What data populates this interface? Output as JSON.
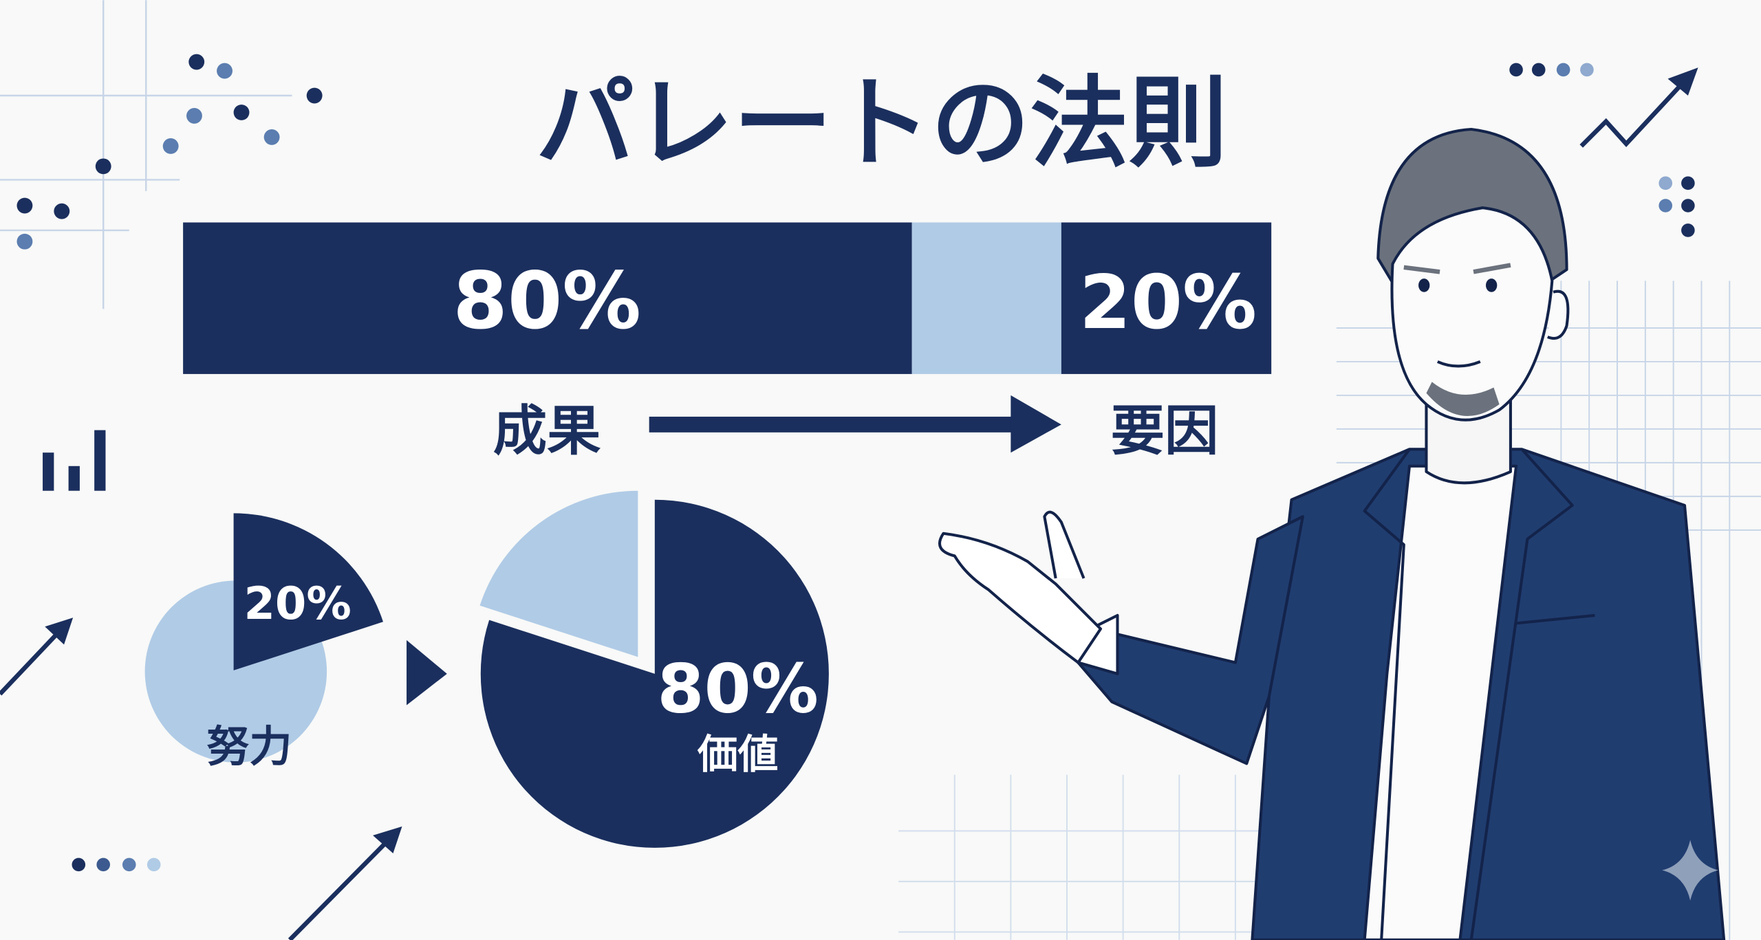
{
  "title": "パレートの法則",
  "bar": {
    "left_label": "80%",
    "right_label": "20%",
    "left_percent": 80,
    "right_percent": 20
  },
  "flow": {
    "from_label": "成果",
    "to_label": "要因"
  },
  "small_pie": {
    "slice_label": "20%",
    "caption": "努力",
    "slice_percent": 20
  },
  "big_pie": {
    "slice_label": "80%",
    "caption": "価値",
    "slice_percent": 80
  },
  "icons": [
    "bar-chart-icon",
    "trend-arrow-icon",
    "dots-icon",
    "sparkle-icon",
    "presenter-illustration"
  ],
  "colors": {
    "navy": "#1b2f5e",
    "light_blue": "#b0cbe6",
    "mid_blue": "#5b7db0",
    "grid": "#c8d5e8",
    "background": "#f8f9f8"
  }
}
